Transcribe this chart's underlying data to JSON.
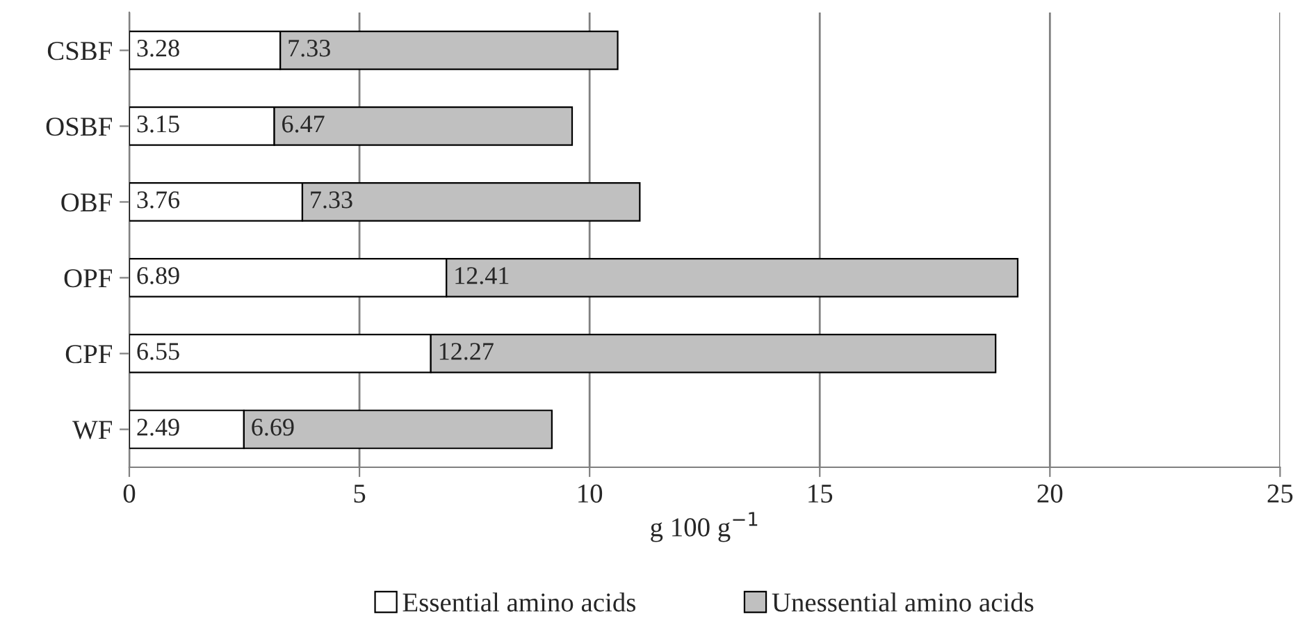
{
  "chart_data": {
    "type": "bar",
    "orientation": "horizontal",
    "stacked": true,
    "categories": [
      "CSBF",
      "OSBF",
      "OBF",
      "OPF",
      "CPF",
      "WF"
    ],
    "series": [
      {
        "name": "Essential amino acids",
        "color": "#ffffff",
        "values": [
          3.28,
          3.15,
          3.76,
          6.89,
          6.55,
          2.49
        ]
      },
      {
        "name": "Unessential amino acids",
        "color": "#c0c0c0",
        "values": [
          7.33,
          6.47,
          7.33,
          12.41,
          12.27,
          6.69
        ]
      }
    ],
    "xlabel": "g 100 g$^{−1}$",
    "xlim": [
      0,
      25
    ],
    "xticks": [
      0,
      5,
      10,
      15,
      20,
      25
    ],
    "grid": "x",
    "legend": "bottom",
    "data_labels": true
  }
}
